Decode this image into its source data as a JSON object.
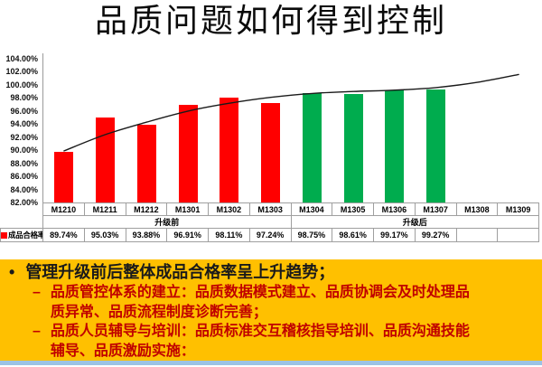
{
  "slide": {
    "title": "品质问题如何得到控制",
    "accent_bar_color": "#9CC3E5"
  },
  "chart_data": {
    "type": "bar",
    "title": "品质问题如何得到控制",
    "categories": [
      "M1210",
      "M1211",
      "M1212",
      "M1301",
      "M1302",
      "M1303",
      "M1304",
      "M1305",
      "M1306",
      "M1307",
      "M1308",
      "M1309"
    ],
    "series": [
      {
        "name": "成品合格率",
        "values": [
          89.74,
          95.03,
          93.88,
          96.91,
          98.11,
          97.24,
          98.75,
          98.61,
          99.17,
          99.27,
          null,
          null
        ]
      }
    ],
    "bar_colors": [
      "#FF0000",
      "#FF0000",
      "#FF0000",
      "#FF0000",
      "#FF0000",
      "#FF0000",
      "#00AC4E",
      "#00AC4E",
      "#00AC4E",
      "#00AC4E",
      null,
      null
    ],
    "trend_line": {
      "name": "趋势线",
      "color": "#1A1A1A",
      "values": [
        89.9,
        92.4,
        94.3,
        96.0,
        97.2,
        98.1,
        98.7,
        99.0,
        99.2,
        99.6,
        100.4,
        101.6
      ]
    },
    "ylim": [
      82,
      104
    ],
    "ytick_step": 2,
    "grid": false,
    "ytick_labels": [
      "104.00%",
      "102.00%",
      "100.00%",
      "98.00%",
      "96.00%",
      "94.00%",
      "92.00%",
      "90.00%",
      "88.00%",
      "86.00%",
      "84.00%",
      "82.00%"
    ],
    "legend_label": "成品合格率",
    "legend_marker_color": "#FF0000",
    "group_labels": [
      {
        "label": "升级前",
        "span": 6
      },
      {
        "label": "升级后",
        "span": 6
      }
    ],
    "value_labels": [
      "89.74%",
      "95.03%",
      "93.88%",
      "96.91%",
      "98.11%",
      "97.24%",
      "98.75%",
      "98.61%",
      "99.17%",
      "99.27%",
      "",
      ""
    ]
  },
  "callout": {
    "background": "#FFC000",
    "bullet_marker": "•",
    "sub_marker": "–",
    "bullet": "管理升级前后整体成品合格率呈上升趋势；",
    "bullet_color": "#1A1A1A",
    "sub_bullet_color": "#C00000",
    "sub_bullets": [
      "品质管控体系的建立：品质数据模式建立、品质协调会及时处理品质异常、品质流程制度诊断完善；",
      "品质人员辅导与培训：品质标准交互稽核指导培训、品质沟通技能辅导、品质激励实施："
    ]
  }
}
